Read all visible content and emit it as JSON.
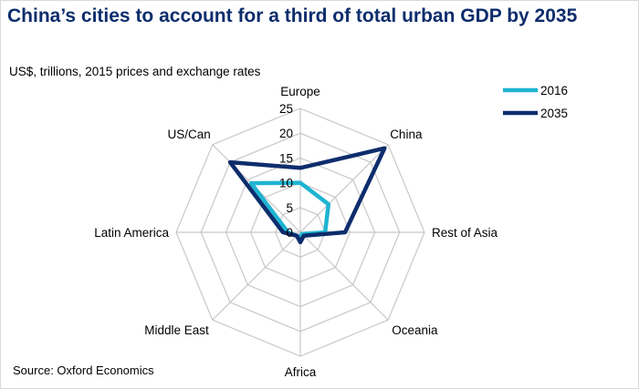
{
  "title": "China’s cities to account for a third of total urban GDP by 2035",
  "subtitle": "US$, trillions, 2015 prices and exchange rates",
  "source": "Source: Oxford Economics",
  "chart_data": {
    "type": "radar",
    "categories": [
      "Europe",
      "China",
      "Rest of Asia",
      "Oceania",
      "Africa",
      "Middle East",
      "Latin America",
      "US/Can"
    ],
    "rlim": [
      0,
      25
    ],
    "ticks": [
      0,
      5,
      10,
      15,
      20,
      25
    ],
    "series": [
      {
        "name": "2016",
        "color": "#1eb4d2",
        "values": [
          10,
          8,
          5,
          0.5,
          1,
          1,
          2.5,
          14
        ]
      },
      {
        "name": "2035",
        "color": "#0d2d6c",
        "values": [
          13,
          24,
          9,
          1,
          2,
          1,
          3.5,
          20
        ]
      }
    ],
    "legend_position": "top-right",
    "grid": true
  }
}
